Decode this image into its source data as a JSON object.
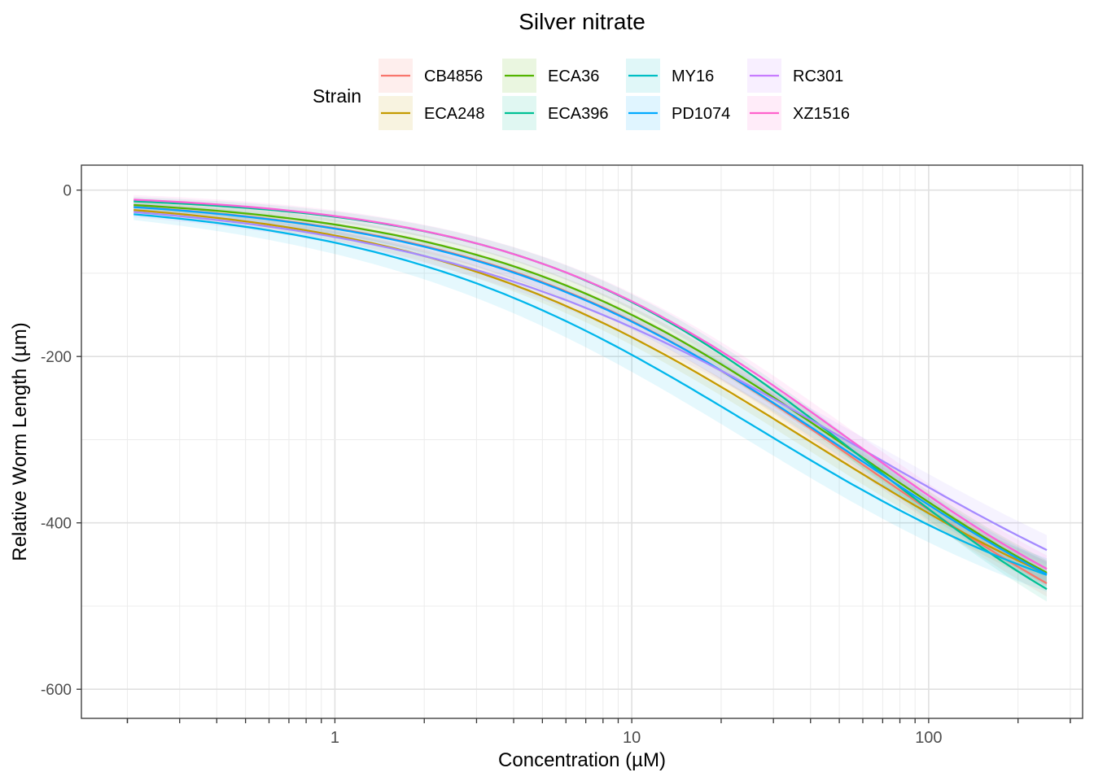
{
  "chart_data": {
    "type": "line",
    "title": "Silver nitrate",
    "xlabel": "Concentration (µM)",
    "ylabel": "Relative Worm Length (µm)",
    "x_scale": "log10",
    "xlim": [
      0.14,
      330
    ],
    "ylim": [
      -635,
      30
    ],
    "x_ticks": [
      1,
      10,
      100
    ],
    "x_tick_labels": [
      "1",
      "10",
      "100"
    ],
    "y_ticks": [
      0,
      -200,
      -400,
      -600
    ],
    "y_tick_labels": [
      "0",
      "-200",
      "-400",
      "-600"
    ],
    "grid": true,
    "legend": {
      "title": "Strain",
      "position": "top"
    },
    "x_range": [
      0.21,
      250
    ],
    "series": [
      {
        "name": "CB4856",
        "color": "#F8766D",
        "curve": {
          "y0": -5,
          "ymax": -655,
          "ec50": 60,
          "hill": 0.66
        },
        "band": 16
      },
      {
        "name": "ECA248",
        "color": "#C49A00",
        "curve": {
          "y0": -5,
          "ymax": -600,
          "ec50": 40,
          "hill": 0.65
        },
        "band": 15
      },
      {
        "name": "ECA36",
        "color": "#53B400",
        "curve": {
          "y0": -5,
          "ymax": -620,
          "ec50": 55,
          "hill": 0.69
        },
        "band": 15
      },
      {
        "name": "ECA396",
        "color": "#00C094",
        "curve": {
          "y0": -5,
          "ymax": -640,
          "ec50": 60,
          "hill": 0.76
        },
        "band": 15
      },
      {
        "name": "MY16",
        "color": "#00B6EB",
        "curve": {
          "y0": -9,
          "ymax": -560,
          "ec50": 26,
          "hill": 0.68
        },
        "band": 20
      },
      {
        "name": "PD1074",
        "color": "#06A4FF",
        "curve": {
          "y0": -5,
          "ymax": -630,
          "ec50": 55,
          "hill": 0.66
        },
        "band": 15
      },
      {
        "name": "RC301",
        "color": "#A58AFF",
        "curve": {
          "y0": -4,
          "ymax": -620,
          "ec50": 60,
          "hill": 0.58
        },
        "band": 18
      },
      {
        "name": "XZ1516",
        "color": "#FB61D7",
        "curve": {
          "y0": -2,
          "ymax": -605,
          "ec50": 56,
          "hill": 0.74
        },
        "band": 16
      }
    ],
    "legend_colors_display": [
      "#F8766D",
      "#C49A00",
      "#53B400",
      "#00C094",
      "#00BFC4",
      "#00A9FF",
      "#C77CFF",
      "#FF61CC"
    ]
  }
}
